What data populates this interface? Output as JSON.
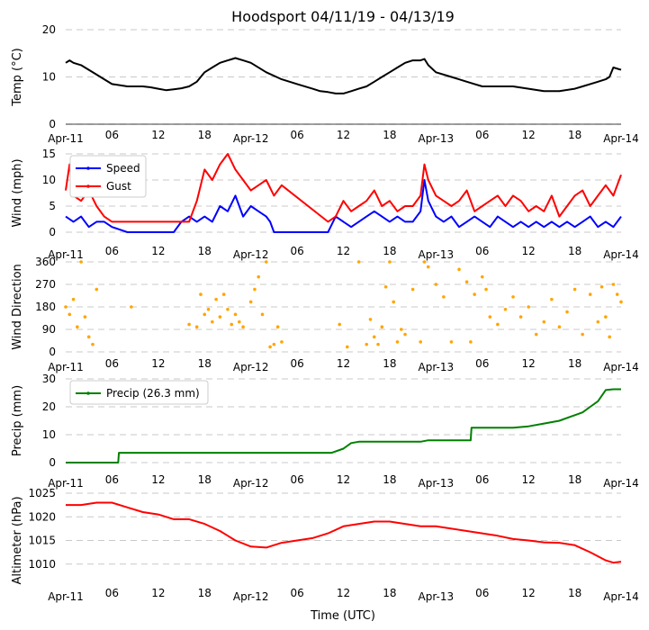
{
  "title": "Hoodsport 04/11/19 - 04/13/19",
  "x_axis": {
    "label": "Time (UTC)",
    "ticks": [
      "Apr-11",
      "06",
      "12",
      "18",
      "Apr-12",
      "06",
      "12",
      "18",
      "Apr-13",
      "06",
      "12",
      "18",
      "Apr-14"
    ],
    "range_hours": [
      0,
      72
    ]
  },
  "colors": {
    "temp": "#000000",
    "speed": "#0000ff",
    "gust": "#ff0000",
    "dir": "#ffa500",
    "precip": "#008000",
    "alt": "#ff0000",
    "grid": "#c8c8c8"
  },
  "chart_data": [
    {
      "id": "temp",
      "type": "line",
      "ylabel": "Temp ($^\\circ$C)",
      "ylabel_display": "Temp (°C)",
      "ylim": [
        0,
        20
      ],
      "yticks": [
        0,
        10,
        20
      ],
      "series": [
        {
          "name": "Temp",
          "x": [
            0,
            0.5,
            1,
            2,
            3,
            4,
            5,
            6,
            8,
            10,
            11,
            12,
            13,
            14,
            15,
            16,
            17,
            18,
            19,
            20,
            21,
            22,
            23,
            24,
            26,
            28,
            30,
            32,
            33,
            34,
            35,
            36,
            37,
            38,
            39,
            40,
            41,
            42,
            43,
            44,
            45,
            46,
            46.5,
            47,
            48,
            50,
            52,
            53,
            54,
            56,
            58,
            60,
            62,
            64,
            66,
            67,
            68,
            69,
            70,
            70.5,
            71,
            72
          ],
          "values": [
            13,
            13.5,
            13,
            12.5,
            11.5,
            10.5,
            9.5,
            8.5,
            8,
            8,
            7.8,
            7.5,
            7.2,
            7.4,
            7.6,
            8,
            9,
            11,
            12,
            13,
            13.5,
            14,
            13.5,
            13,
            11,
            9.5,
            8.5,
            7.5,
            7,
            6.8,
            6.5,
            6.5,
            7,
            7.5,
            8,
            9,
            10,
            11,
            12,
            13,
            13.5,
            13.5,
            13.8,
            12.5,
            11,
            10,
            9,
            8.5,
            8,
            8,
            8,
            7.5,
            7,
            7,
            7.5,
            8,
            8.5,
            9,
            9.5,
            10,
            12,
            11.5
          ]
        }
      ]
    },
    {
      "id": "wind",
      "type": "line",
      "ylabel": "Wind (mph)",
      "ylim": [
        0,
        15
      ],
      "yticks": [
        0,
        5,
        10,
        15
      ],
      "legend": "upper left",
      "series": [
        {
          "name": "Speed",
          "x": [
            0,
            1,
            2,
            3,
            4,
            5,
            6,
            7,
            8,
            14,
            15,
            16,
            17,
            18,
            19,
            20,
            21,
            22,
            23,
            24,
            25,
            26,
            26.5,
            27,
            34,
            35,
            36,
            37,
            38,
            39,
            40,
            41,
            42,
            43,
            44,
            45,
            46,
            46.5,
            47,
            48,
            49,
            50,
            51,
            52,
            53,
            54,
            55,
            56,
            57,
            58,
            59,
            60,
            61,
            62,
            63,
            64,
            65,
            66,
            67,
            68,
            69,
            70,
            71,
            72
          ],
          "values": [
            3,
            2,
            3,
            1,
            2,
            2,
            1,
            0.5,
            0,
            0,
            2,
            3,
            2,
            3,
            2,
            5,
            4,
            7,
            3,
            5,
            4,
            3,
            2,
            0,
            0,
            3,
            2,
            1,
            2,
            3,
            4,
            3,
            2,
            3,
            2,
            2,
            4,
            10,
            6,
            3,
            2,
            3,
            1,
            2,
            3,
            2,
            1,
            3,
            2,
            1,
            2,
            1,
            2,
            1,
            2,
            1,
            2,
            1,
            2,
            3,
            1,
            2,
            1,
            3
          ]
        },
        {
          "name": "Gust",
          "x": [
            0,
            0.5,
            1,
            2,
            3,
            4,
            5,
            6,
            7,
            16,
            17,
            18,
            19,
            20,
            21,
            22,
            23,
            24,
            25,
            26,
            27,
            28,
            34,
            35,
            36,
            37,
            38,
            39,
            40,
            41,
            42,
            43,
            44,
            45,
            46,
            46.5,
            47,
            48,
            49,
            50,
            51,
            52,
            53,
            54,
            55,
            56,
            57,
            58,
            59,
            60,
            61,
            62,
            63,
            64,
            65,
            66,
            67,
            68,
            69,
            70,
            71,
            72
          ],
          "values": [
            8,
            13,
            7,
            6,
            8,
            5,
            3,
            2,
            2,
            2,
            6,
            12,
            10,
            13,
            15,
            12,
            10,
            8,
            9,
            10,
            7,
            9,
            2,
            3,
            6,
            4,
            5,
            6,
            8,
            5,
            6,
            4,
            5,
            5,
            7,
            13,
            10,
            7,
            6,
            5,
            6,
            8,
            4,
            5,
            6,
            7,
            5,
            7,
            6,
            4,
            5,
            4,
            7,
            3,
            5,
            7,
            8,
            5,
            7,
            9,
            7,
            11
          ]
        }
      ]
    },
    {
      "id": "dir",
      "type": "scatter",
      "ylabel": "Wind Direction",
      "ylim": [
        0,
        360
      ],
      "yticks": [
        0,
        90,
        180,
        270,
        360
      ],
      "series": [
        {
          "name": "Direction",
          "x": [
            0,
            0.5,
            1,
            1.5,
            2,
            2.5,
            3,
            3.5,
            4,
            8.5,
            16,
            17,
            17.5,
            18,
            18.5,
            19,
            19.5,
            20,
            20.5,
            21,
            21.5,
            22,
            22.5,
            23,
            24,
            24.5,
            25,
            25.5,
            26,
            26.5,
            27,
            27.5,
            28,
            35.5,
            36.5,
            38,
            39,
            39.5,
            40,
            40.5,
            41,
            41.5,
            42,
            42.5,
            43,
            43.5,
            44,
            45,
            46,
            46.5,
            47,
            48,
            49,
            50,
            51,
            52,
            52.5,
            53,
            54,
            54.5,
            55,
            56,
            57,
            58,
            59,
            60,
            61,
            62,
            63,
            64,
            65,
            66,
            67,
            68,
            69,
            69.5,
            70,
            70.5,
            71,
            71.5,
            72
          ],
          "values": [
            180,
            150,
            210,
            100,
            360,
            140,
            60,
            30,
            250,
            180,
            110,
            100,
            230,
            150,
            170,
            120,
            210,
            140,
            230,
            170,
            110,
            150,
            120,
            100,
            200,
            250,
            300,
            150,
            360,
            20,
            30,
            100,
            40,
            110,
            20,
            360,
            30,
            130,
            60,
            30,
            100,
            260,
            360,
            200,
            40,
            90,
            70,
            250,
            40,
            360,
            340,
            270,
            220,
            40,
            330,
            280,
            40,
            230,
            300,
            250,
            140,
            110,
            170,
            220,
            140,
            180,
            70,
            120,
            210,
            100,
            160,
            250,
            70,
            230,
            120,
            260,
            140,
            60,
            270,
            230,
            200
          ]
        }
      ]
    },
    {
      "id": "precip",
      "type": "line",
      "ylabel": "Precip (mm)",
      "ylim": [
        0,
        30
      ],
      "yticks": [
        0,
        10,
        20,
        30
      ],
      "legend": "upper left",
      "series": [
        {
          "name": "Precip (26.3 mm)",
          "x": [
            0,
            6.8,
            6.9,
            12,
            18,
            24,
            30,
            34.5,
            36,
            37,
            38,
            41,
            44,
            46,
            47,
            50,
            52.5,
            52.6,
            56,
            58,
            60,
            62,
            64,
            66,
            67,
            68,
            69,
            70,
            71,
            72
          ],
          "values": [
            0,
            0,
            3.5,
            3.5,
            3.5,
            3.5,
            3.5,
            3.5,
            5,
            7,
            7.5,
            7.5,
            7.5,
            7.5,
            8,
            8,
            8,
            12.5,
            12.5,
            12.5,
            13,
            14,
            15,
            17,
            18,
            20,
            22,
            26,
            26.3,
            26.3
          ]
        }
      ]
    },
    {
      "id": "alt",
      "type": "line",
      "ylabel": "Altimeter (hPa)",
      "ylim": [
        1005,
        1025
      ],
      "yticks": [
        1010,
        1015,
        1020,
        1025
      ],
      "series": [
        {
          "name": "Altimeter",
          "x": [
            0,
            2,
            4,
            6,
            8,
            10,
            12,
            14,
            16,
            18,
            20,
            22,
            24,
            26,
            28,
            30,
            32,
            34,
            36,
            38,
            40,
            42,
            44,
            46,
            48,
            50,
            52,
            54,
            56,
            58,
            60,
            62,
            64,
            66,
            68,
            70,
            71,
            72
          ],
          "values": [
            1022.5,
            1022.5,
            1023,
            1023,
            1022,
            1021,
            1020.5,
            1019.5,
            1019.5,
            1018.5,
            1017,
            1015,
            1013.7,
            1013.5,
            1014.5,
            1015,
            1015.5,
            1016.5,
            1018,
            1018.5,
            1019,
            1019,
            1018.5,
            1018,
            1018,
            1017.5,
            1017,
            1016.5,
            1016,
            1015.3,
            1015,
            1014.6,
            1014.5,
            1014,
            1012.5,
            1010.8,
            1010.3,
            1010.5
          ]
        }
      ]
    }
  ]
}
